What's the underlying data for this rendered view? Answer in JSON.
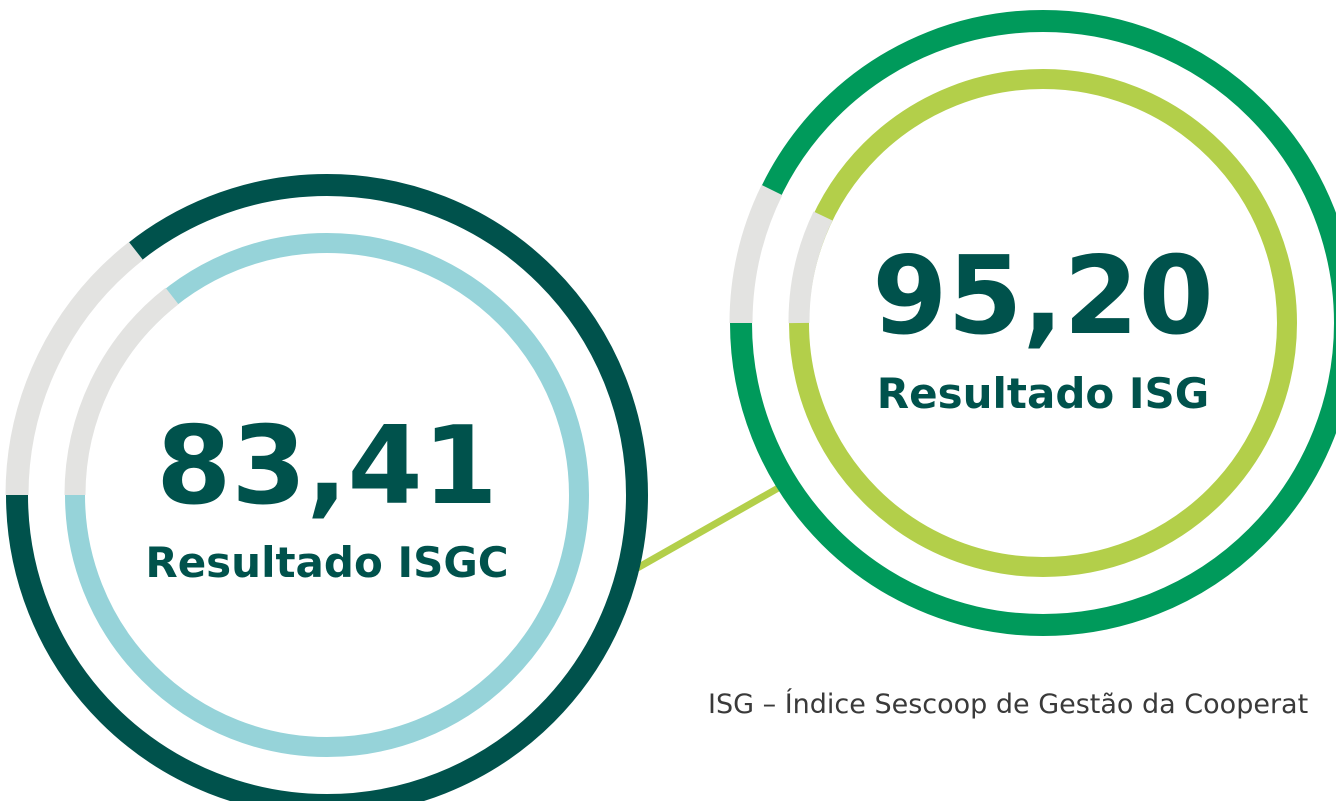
{
  "gauges": [
    {
      "value": "83,41",
      "label": "Resultado ISGC"
    },
    {
      "value": "95,20",
      "label": "Resultado ISG"
    }
  ],
  "caption": "ISG – Índice Sescoop de Gestão da Cooperat"
}
